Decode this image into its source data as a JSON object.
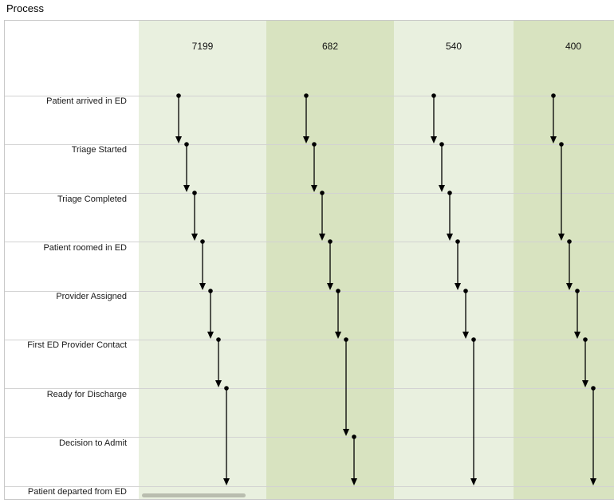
{
  "title": "Process",
  "colors": {
    "light_band": "#e9f0df",
    "dark_band": "#d8e3c0",
    "grid_line": "#d2d2d2",
    "arrow": "#000000"
  },
  "steps": [
    "Patient arrived in ED",
    "Triage Started",
    "Triage Completed",
    "Patient roomed in ED",
    "Provider Assigned",
    "First ED Provider Contact",
    "Ready for Discharge",
    "Decision to Admit",
    "Patient departed from ED"
  ],
  "paths": [
    {
      "count": "7199",
      "sequence": [
        0,
        1,
        2,
        3,
        4,
        5,
        6,
        8
      ]
    },
    {
      "count": "682",
      "sequence": [
        0,
        1,
        2,
        3,
        4,
        5,
        7,
        8
      ]
    },
    {
      "count": "540",
      "sequence": [
        0,
        1,
        2,
        3,
        4,
        5,
        8
      ]
    },
    {
      "count": "400",
      "sequence": [
        0,
        1,
        3,
        4,
        5,
        6,
        8
      ]
    }
  ]
}
